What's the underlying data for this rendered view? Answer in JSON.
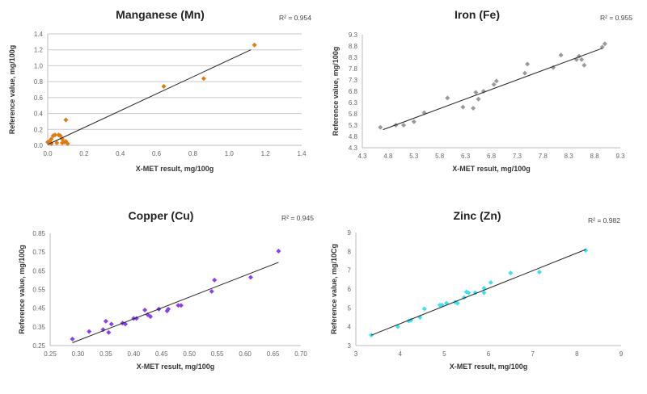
{
  "chart_data": [
    {
      "type": "scatter",
      "title": "Manganese (Mn)",
      "r2_label": "R² = 0.954",
      "xlabel": "X-MET result, mg/100g",
      "ylabel": "Reference value, mg/100g",
      "xlim": [
        0,
        1.4
      ],
      "ylim": [
        0,
        1.4
      ],
      "xticks": [
        "0.0",
        "0.2",
        "0.4",
        "0.6",
        "0.8",
        "1.0",
        "1.2",
        "1.4"
      ],
      "yticks": [
        "0.0",
        "0.2",
        "0.4",
        "0.6",
        "0.8",
        "1.0",
        "1.2",
        "1.4"
      ],
      "grid": true,
      "color": "#e07b10",
      "points": [
        [
          0.0,
          0.04
        ],
        [
          0.01,
          0.05
        ],
        [
          0.02,
          0.02
        ],
        [
          0.02,
          0.08
        ],
        [
          0.03,
          0.12
        ],
        [
          0.04,
          0.13
        ],
        [
          0.05,
          0.03
        ],
        [
          0.06,
          0.13
        ],
        [
          0.07,
          0.12
        ],
        [
          0.08,
          0.03
        ],
        [
          0.08,
          0.08
        ],
        [
          0.09,
          0.04
        ],
        [
          0.1,
          0.05
        ],
        [
          0.1,
          0.32
        ],
        [
          0.11,
          0.02
        ],
        [
          0.64,
          0.74
        ],
        [
          0.86,
          0.84
        ],
        [
          1.14,
          1.26
        ]
      ],
      "trendline": [
        [
          0.0,
          0.01
        ],
        [
          1.12,
          1.2
        ]
      ]
    },
    {
      "type": "scatter",
      "title": "Iron (Fe)",
      "r2_label": "R² = 0.955",
      "xlabel": "X-MET result, mg/100g",
      "ylabel": "Reference value, mg/100g",
      "xlim": [
        4.3,
        9.3
      ],
      "ylim": [
        4.3,
        9.3
      ],
      "xticks": [
        "4.3",
        "4.8",
        "5.3",
        "5.8",
        "6.3",
        "6.8",
        "7.3",
        "7.8",
        "8.3",
        "8.8",
        "9.3"
      ],
      "yticks": [
        "4.3",
        "4.8",
        "5.3",
        "5.8",
        "6.3",
        "6.8",
        "7.3",
        "7.8",
        "8.3",
        "8.8",
        "9.3"
      ],
      "grid": false,
      "color": "#9a9a9a",
      "points": [
        [
          4.65,
          5.2
        ],
        [
          4.95,
          5.3
        ],
        [
          5.1,
          5.3
        ],
        [
          5.3,
          5.45
        ],
        [
          5.5,
          5.85
        ],
        [
          5.95,
          6.5
        ],
        [
          6.25,
          6.1
        ],
        [
          6.45,
          6.05
        ],
        [
          6.5,
          6.75
        ],
        [
          6.55,
          6.45
        ],
        [
          6.65,
          6.8
        ],
        [
          6.85,
          7.1
        ],
        [
          6.9,
          7.25
        ],
        [
          7.45,
          7.6
        ],
        [
          7.5,
          8.0
        ],
        [
          8.0,
          7.85
        ],
        [
          8.15,
          8.4
        ],
        [
          8.45,
          8.2
        ],
        [
          8.5,
          8.35
        ],
        [
          8.55,
          8.2
        ],
        [
          8.6,
          7.95
        ],
        [
          8.95,
          8.75
        ],
        [
          9.0,
          8.9
        ]
      ],
      "trendline": [
        [
          4.7,
          5.1
        ],
        [
          8.95,
          8.7
        ]
      ]
    },
    {
      "type": "scatter",
      "title": "Copper (Cu)",
      "r2_label": "R² = 0.945",
      "xlabel": "X-MET result, mg/100g",
      "ylabel": "Reference value, mg/100g",
      "xlim": [
        0.25,
        0.7
      ],
      "ylim": [
        0.25,
        0.85
      ],
      "xticks": [
        "0.25",
        "0.30",
        "0.35",
        "0.40",
        "0.45",
        "0.50",
        "0.55",
        "0.60",
        "0.65",
        "0.70"
      ],
      "yticks": [
        "0.25",
        "0.35",
        "0.45",
        "0.55",
        "0.65",
        "0.75",
        "0.85"
      ],
      "grid": false,
      "color": "#8b3ff0",
      "points": [
        [
          0.29,
          0.285
        ],
        [
          0.32,
          0.325
        ],
        [
          0.345,
          0.335
        ],
        [
          0.35,
          0.38
        ],
        [
          0.355,
          0.32
        ],
        [
          0.36,
          0.365
        ],
        [
          0.38,
          0.37
        ],
        [
          0.385,
          0.365
        ],
        [
          0.4,
          0.395
        ],
        [
          0.405,
          0.395
        ],
        [
          0.42,
          0.44
        ],
        [
          0.425,
          0.415
        ],
        [
          0.43,
          0.405
        ],
        [
          0.445,
          0.445
        ],
        [
          0.46,
          0.435
        ],
        [
          0.462,
          0.445
        ],
        [
          0.48,
          0.465
        ],
        [
          0.485,
          0.465
        ],
        [
          0.54,
          0.54
        ],
        [
          0.545,
          0.6
        ],
        [
          0.61,
          0.615
        ],
        [
          0.66,
          0.755
        ]
      ],
      "trendline": [
        [
          0.29,
          0.265
        ],
        [
          0.66,
          0.695
        ]
      ]
    },
    {
      "type": "scatter",
      "title": "Zinc (Zn)",
      "r2_label": "R² = 0.982",
      "xlabel": "X-MET result, mg/100g",
      "ylabel": "Reference value, mg/10Cg",
      "xlim": [
        3,
        9
      ],
      "ylim": [
        3,
        9
      ],
      "xticks": [
        "3",
        "4",
        "5",
        "6",
        "7",
        "8",
        "9"
      ],
      "yticks": [
        "3",
        "4",
        "5",
        "6",
        "7",
        "8",
        "9"
      ],
      "grid": false,
      "color": "#3ee0f0",
      "points": [
        [
          3.35,
          3.55
        ],
        [
          3.95,
          4.0
        ],
        [
          4.2,
          4.3
        ],
        [
          4.25,
          4.35
        ],
        [
          4.45,
          4.5
        ],
        [
          4.55,
          4.95
        ],
        [
          4.9,
          5.15
        ],
        [
          4.95,
          5.15
        ],
        [
          5.05,
          5.25
        ],
        [
          5.25,
          5.3
        ],
        [
          5.3,
          5.25
        ],
        [
          5.45,
          5.55
        ],
        [
          5.5,
          5.85
        ],
        [
          5.55,
          5.8
        ],
        [
          5.7,
          5.8
        ],
        [
          5.9,
          6.05
        ],
        [
          5.9,
          5.8
        ],
        [
          6.05,
          6.35
        ],
        [
          6.5,
          6.85
        ],
        [
          7.15,
          6.9
        ],
        [
          8.2,
          8.05
        ]
      ],
      "trendline": [
        [
          3.35,
          3.55
        ],
        [
          8.2,
          8.1
        ]
      ]
    }
  ]
}
